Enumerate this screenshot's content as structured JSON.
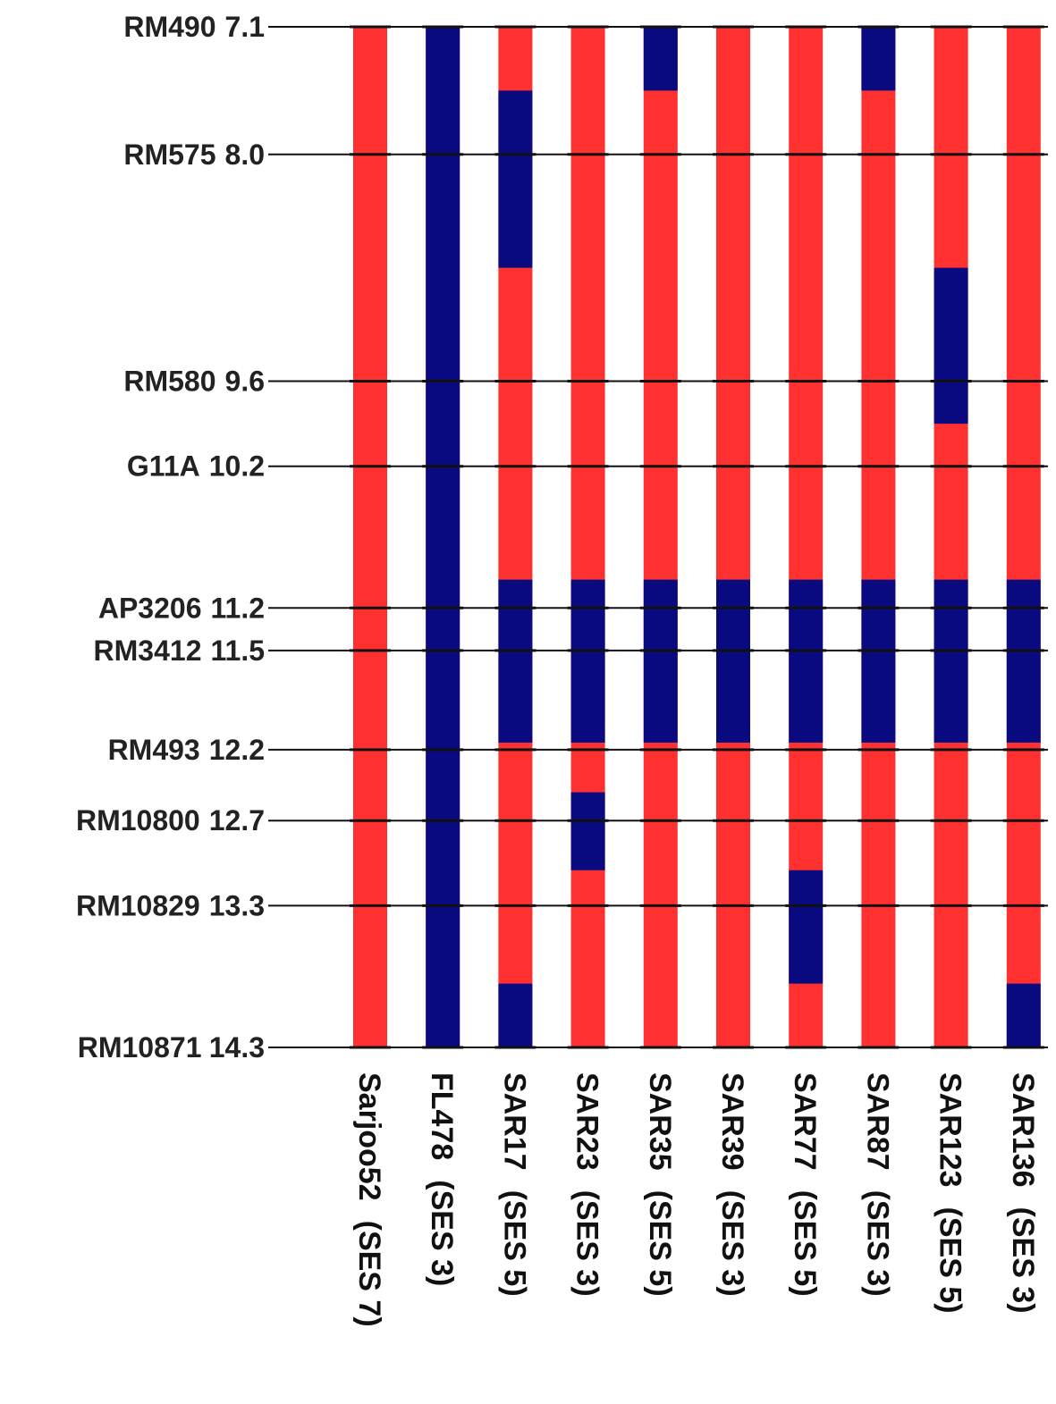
{
  "colors": {
    "parent_a": "#ff3030",
    "parent_b": "#0a0a80",
    "line": "#111111",
    "text": "#222222"
  },
  "markers": [
    {
      "name": "RM490",
      "cm": "7.1"
    },
    {
      "name": "RM575",
      "cm": "8.0"
    },
    {
      "name": "RM580",
      "cm": "9.6"
    },
    {
      "name": "G11A",
      "cm": "10.2"
    },
    {
      "name": "AP3206",
      "cm": "11.2"
    },
    {
      "name": "RM3412",
      "cm": "11.5"
    },
    {
      "name": "RM493",
      "cm": "12.2"
    },
    {
      "name": "RM10800",
      "cm": "12.7"
    },
    {
      "name": "RM10829",
      "cm": "13.3"
    },
    {
      "name": "RM10871",
      "cm": "14.3"
    }
  ],
  "lines": [
    {
      "name": "Sarjoo52",
      "ses": "(SES 7)",
      "blue_segments": []
    },
    {
      "name": "FL478",
      "ses": "(SES 3)",
      "blue_segments": [
        [
          7.1,
          14.3
        ]
      ]
    },
    {
      "name": "SAR17",
      "ses": "(SES 5)",
      "blue_segments": [
        [
          7.55,
          8.8
        ],
        [
          11.0,
          12.15
        ],
        [
          13.85,
          14.3
        ]
      ]
    },
    {
      "name": "SAR23",
      "ses": "(SES 3)",
      "blue_segments": [
        [
          11.0,
          12.15
        ],
        [
          12.5,
          13.05
        ]
      ]
    },
    {
      "name": "SAR35",
      "ses": "(SES 5)",
      "blue_segments": [
        [
          7.1,
          7.55
        ],
        [
          11.0,
          12.15
        ]
      ]
    },
    {
      "name": "SAR39",
      "ses": "(SES 3)",
      "blue_segments": [
        [
          11.0,
          12.15
        ]
      ]
    },
    {
      "name": "SAR77",
      "ses": "(SES 5)",
      "blue_segments": [
        [
          11.0,
          12.15
        ],
        [
          13.05,
          13.85
        ]
      ]
    },
    {
      "name": "SAR87",
      "ses": "(SES 3)",
      "blue_segments": [
        [
          7.1,
          7.55
        ],
        [
          11.0,
          12.15
        ]
      ]
    },
    {
      "name": "SAR123",
      "ses": "(SES 5)",
      "blue_segments": [
        [
          8.8,
          9.9
        ],
        [
          11.0,
          12.15
        ]
      ]
    },
    {
      "name": "SAR136",
      "ses": "(SES 3)",
      "blue_segments": [
        [
          11.0,
          12.15
        ],
        [
          13.85,
          14.3
        ]
      ]
    }
  ]
}
